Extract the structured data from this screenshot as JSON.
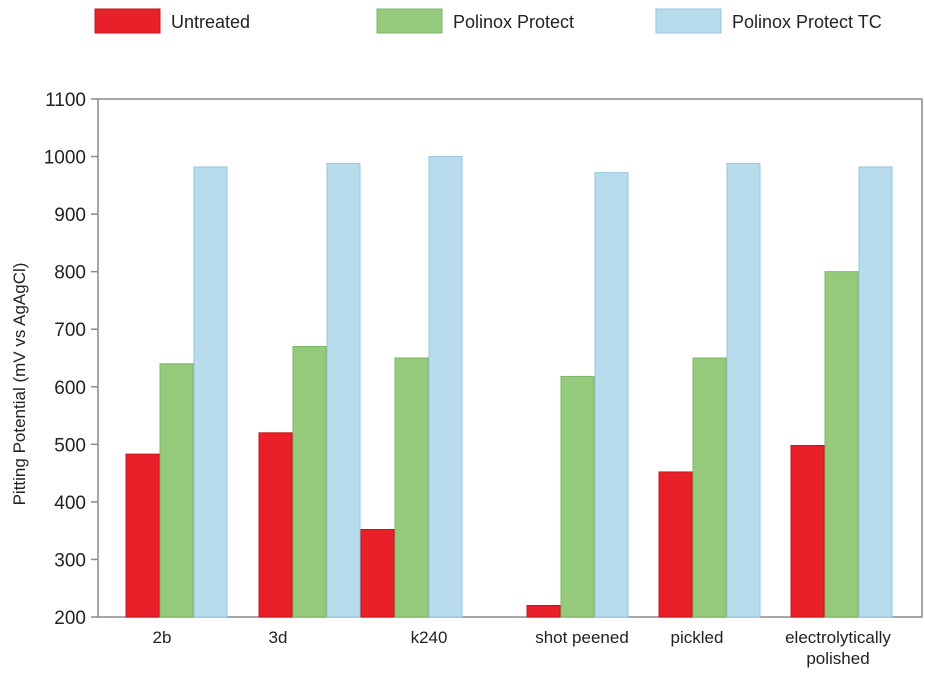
{
  "chart_data": {
    "type": "bar",
    "categories": [
      [
        "2b"
      ],
      [
        "3d"
      ],
      [
        "k240"
      ],
      [
        "shot peened"
      ],
      [
        "pickled"
      ],
      [
        "electrolytically",
        "polished"
      ]
    ],
    "series": [
      {
        "name": "Untreated",
        "color": "#e8202a",
        "values": [
          483,
          520,
          352,
          220,
          452,
          498
        ]
      },
      {
        "name": "Polinox Protect",
        "color": "#95ca7d",
        "values": [
          640,
          670,
          650,
          618,
          650,
          800
        ]
      },
      {
        "name": "Polinox Protect TC",
        "color": "#b9dced",
        "values": [
          982,
          988,
          1000,
          972,
          988,
          982
        ]
      }
    ],
    "ylabel": "Pitting Potential (mV vs AgAgCl)",
    "xlabel": "",
    "ylim": [
      200,
      1100
    ],
    "yticks": [
      200,
      300,
      400,
      500,
      600,
      700,
      800,
      900,
      1000,
      1100
    ],
    "grid": false,
    "legend_position": "top"
  }
}
